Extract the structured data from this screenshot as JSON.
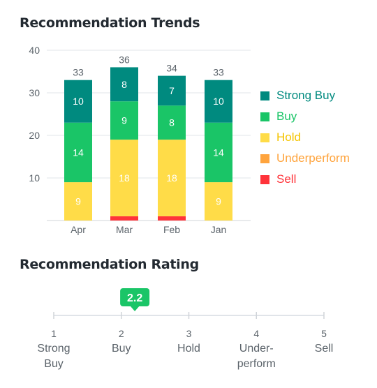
{
  "trends": {
    "title": "Recommendation Trends"
  },
  "rating": {
    "title": "Recommendation Rating",
    "value_label": "2.2",
    "scale": [
      {
        "num": "1",
        "line1": "Strong",
        "line2": "Buy"
      },
      {
        "num": "2",
        "line1": "Buy",
        "line2": ""
      },
      {
        "num": "3",
        "line1": "Hold",
        "line2": ""
      },
      {
        "num": "4",
        "line1": "Under-",
        "line2": "perform"
      },
      {
        "num": "5",
        "line1": "Sell",
        "line2": ""
      }
    ],
    "value": 2.2,
    "marker_color": "#1ac567"
  },
  "chart_data": {
    "type": "bar",
    "stacked": true,
    "categories": [
      "Apr",
      "Mar",
      "Feb",
      "Jan"
    ],
    "ylim": [
      0,
      40
    ],
    "yticks": [
      10,
      20,
      30,
      40
    ],
    "totals": [
      33,
      36,
      34,
      33
    ],
    "series": [
      {
        "name": "Strong Buy",
        "color": "#008a7f",
        "values": [
          10,
          8,
          7,
          10
        ]
      },
      {
        "name": "Buy",
        "color": "#1ac567",
        "values": [
          14,
          9,
          8,
          14
        ]
      },
      {
        "name": "Hold",
        "color": "#ffdc48",
        "values": [
          9,
          18,
          18,
          9
        ]
      },
      {
        "name": "Underperform",
        "color": "#ffa43d",
        "values": [
          0,
          0,
          0,
          0
        ]
      },
      {
        "name": "Sell",
        "color": "#ff333a",
        "values": [
          0,
          1,
          1,
          0
        ]
      }
    ],
    "legend_position": "right",
    "grid": true
  }
}
